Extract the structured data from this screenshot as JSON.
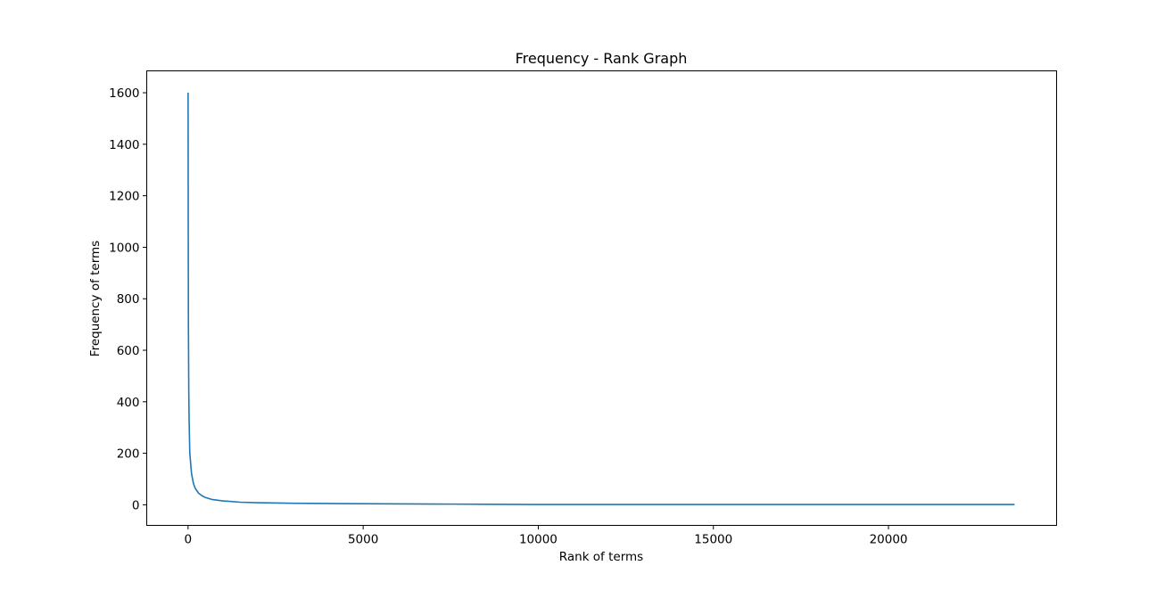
{
  "chart_data": {
    "type": "line",
    "title": "Frequency - Rank Graph",
    "xlabel": "Rank of terms",
    "ylabel": "Frequency of terms",
    "xlim": [
      -1180,
      24800
    ],
    "ylim": [
      -80,
      1685
    ],
    "xticks": [
      0,
      5000,
      10000,
      15000,
      20000
    ],
    "yticks": [
      0,
      200,
      400,
      600,
      800,
      1000,
      1200,
      1400,
      1600
    ],
    "grid": false,
    "series": [
      {
        "color": "#1f77b4",
        "x": [
          1,
          5,
          10,
          20,
          30,
          50,
          75,
          100,
          150,
          200,
          300,
          400,
          500,
          700,
          1000,
          1500,
          2000,
          3000,
          4000,
          5000,
          7000,
          8500,
          10000,
          15000,
          20000,
          23600
        ],
        "y": [
          1600,
          1100,
          700,
          450,
          330,
          200,
          160,
          120,
          85,
          65,
          45,
          35,
          28,
          20,
          15,
          10,
          8,
          6,
          5,
          4,
          3,
          2,
          1,
          1,
          1,
          1
        ]
      }
    ]
  }
}
